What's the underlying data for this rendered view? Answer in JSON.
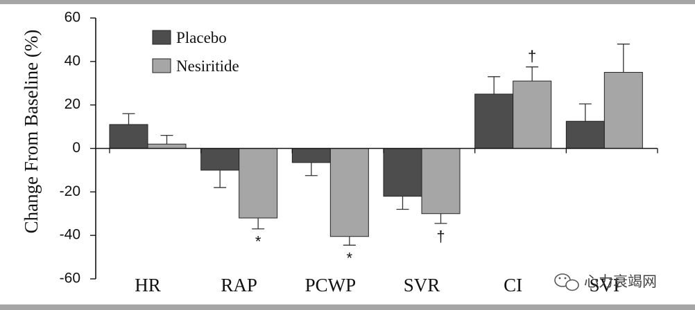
{
  "chart_data": {
    "type": "bar",
    "title": "",
    "xlabel": "",
    "ylabel": "Change From Baseline (%)",
    "ylim": [
      -60,
      60
    ],
    "yticks": [
      60,
      40,
      20,
      0,
      -20,
      -40,
      -60
    ],
    "categories": [
      "HR",
      "RAP",
      "PCWP",
      "SVR",
      "CI",
      "SVI"
    ],
    "series": [
      {
        "name": "Placebo",
        "color": "#4d4d4d",
        "values": [
          11,
          -10,
          -6.5,
          -22,
          25,
          12.5
        ],
        "errors": [
          5,
          8,
          6,
          6,
          8,
          8
        ]
      },
      {
        "name": "Nesiritide",
        "color": "#a6a6a6",
        "values": [
          2,
          -32,
          -40.5,
          -30,
          31,
          35
        ],
        "errors": [
          4,
          5,
          4,
          4.5,
          6.5,
          13
        ]
      }
    ],
    "annotations": [
      {
        "category": "RAP",
        "series": "Nesiritide",
        "symbol": "*"
      },
      {
        "category": "PCWP",
        "series": "Nesiritide",
        "symbol": "*"
      },
      {
        "category": "SVR",
        "series": "Nesiritide",
        "symbol": "†"
      },
      {
        "category": "CI",
        "series": "Nesiritide",
        "symbol": "†"
      }
    ],
    "legend": {
      "position": "top-left"
    }
  },
  "watermark": {
    "text": "心力衰竭网",
    "icon": "wechat-icon"
  }
}
